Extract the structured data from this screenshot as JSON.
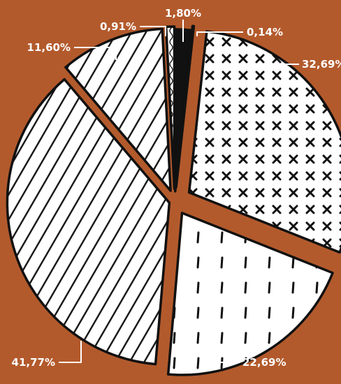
{
  "chart_data": {
    "type": "pie",
    "title": "",
    "slices": [
      {
        "label": "1,80%",
        "value": 1.8,
        "pattern": "solid-black"
      },
      {
        "label": "0,14%",
        "value": 0.14,
        "pattern": "dots"
      },
      {
        "label": "32,69%",
        "value": 32.69,
        "pattern": "crosses"
      },
      {
        "label": "22,69%",
        "value": 22.69,
        "pattern": "ticks"
      },
      {
        "label": "41,77%",
        "value": 41.77,
        "pattern": "diagonal-hatch"
      },
      {
        "label": "11,60%",
        "value": 11.6,
        "pattern": "diagonal-hatch"
      },
      {
        "label": "0,91%",
        "value": 0.91,
        "pattern": "wave"
      }
    ],
    "colors": {
      "background": "#b35a2c",
      "slice_fill": "#ffffff",
      "outline": "#111111",
      "label_text": "#ffffff",
      "leader_line": "#ffffff"
    }
  }
}
